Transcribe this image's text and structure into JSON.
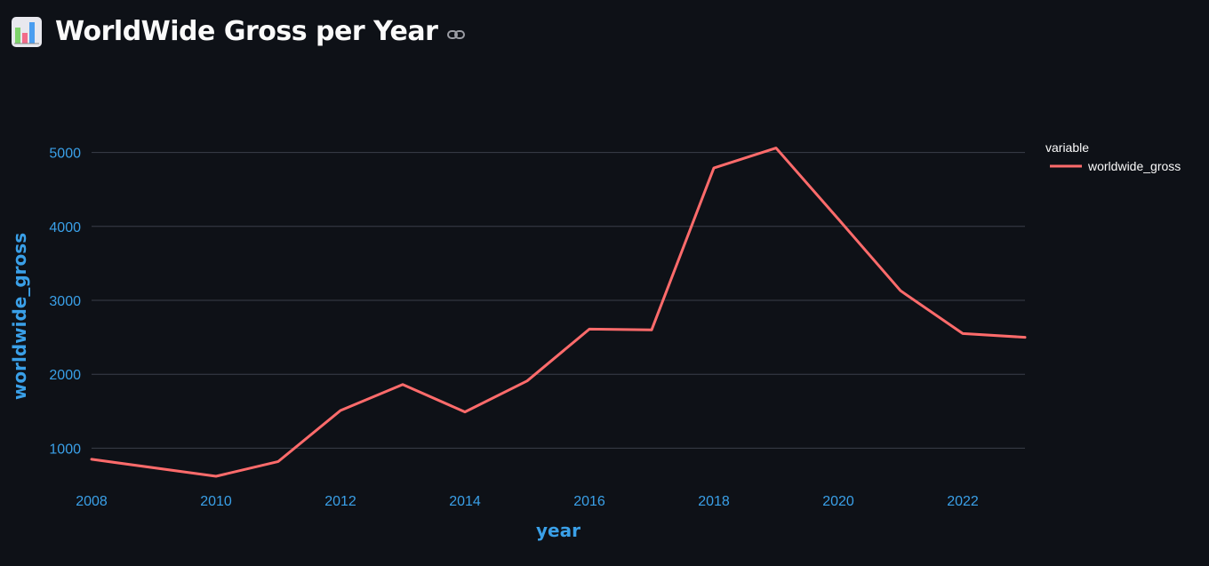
{
  "header": {
    "title": "WorldWide Gross per Year",
    "icon": "bar-chart-emoji-icon",
    "link_icon": "link-icon"
  },
  "colors": {
    "background": "#0e1117",
    "line": "#ff6b6b",
    "axis_text": "#3aa0e8",
    "grid": "#3a3f4a",
    "text": "#fafafa"
  },
  "chart_data": {
    "type": "line",
    "x": [
      2008,
      2010,
      2011,
      2012,
      2013,
      2014,
      2015,
      2016,
      2017,
      2018,
      2019,
      2020,
      2021,
      2022,
      2023
    ],
    "series": [
      {
        "name": "worldwide_gross",
        "values": [
          850,
          620,
          820,
          1510,
          1860,
          1490,
          1910,
          2610,
          2600,
          4790,
          5060,
          4100,
          3130,
          2550,
          2500
        ]
      }
    ],
    "xlabel": "year",
    "ylabel": "worldwide_gross",
    "xlim": [
      2008,
      2023
    ],
    "ylim": [
      500,
      5500
    ],
    "x_ticks": [
      2008,
      2010,
      2012,
      2014,
      2016,
      2018,
      2020,
      2022
    ],
    "y_ticks": [
      1000,
      2000,
      3000,
      4000,
      5000
    ],
    "legend": {
      "title": "variable",
      "placement": "top-right"
    },
    "grid": true
  }
}
